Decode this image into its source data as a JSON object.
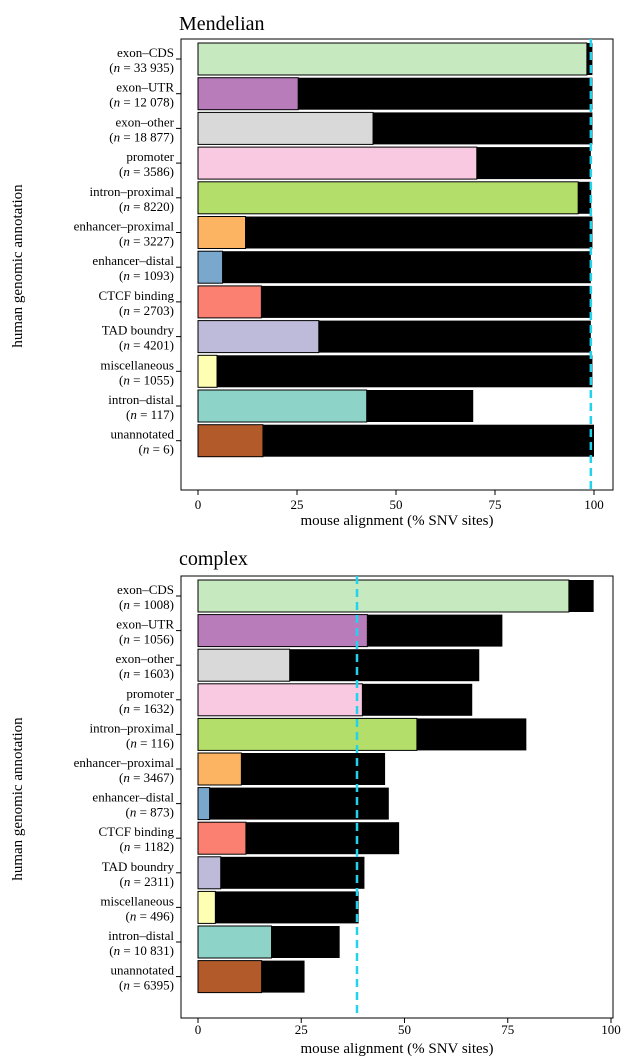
{
  "chart_data": [
    {
      "type": "bar",
      "orientation": "horizontal",
      "stacked": true,
      "title": "Mendelian",
      "xlabel": "mouse alignment (% SNV sites)",
      "ylabel": "human genomic annotation",
      "xlim": [
        0,
        100
      ],
      "xticks": [
        "0",
        "25",
        "50",
        "75",
        "100"
      ],
      "reference_line": 99.2,
      "reference_line_color": "#22d3ee",
      "categories": [
        {
          "name": "exon–CDS",
          "n": "n = 33 935",
          "color": "#c7e9c0",
          "value": 98.2,
          "total": 99.6
        },
        {
          "name": "exon–UTR",
          "n": "n = 12 078",
          "color": "#b87cbb",
          "value": 25.3,
          "total": 99.6
        },
        {
          "name": "exon–other",
          "n": "n = 18 877",
          "color": "#d9d9d9",
          "value": 44.2,
          "total": 99.6
        },
        {
          "name": "promoter",
          "n": "n = 3586",
          "color": "#f9c9e1",
          "value": 70.4,
          "total": 99.2
        },
        {
          "name": "intron–proximal",
          "n": "n = 8220",
          "color": "#b3de69",
          "value": 96.0,
          "total": 99.3
        },
        {
          "name": "enhancer–proximal",
          "n": "n = 3227",
          "color": "#fdb462",
          "value": 12.0,
          "total": 99.6
        },
        {
          "name": "enhancer–distal",
          "n": "n = 1093",
          "color": "#7aa7cc",
          "value": 6.2,
          "total": 99.2
        },
        {
          "name": "CTCF binding",
          "n": "n = 2703",
          "color": "#fb8072",
          "value": 16.0,
          "total": 99.3
        },
        {
          "name": "TAD boundry",
          "n": "n = 4201",
          "color": "#bebada",
          "value": 30.5,
          "total": 99.2
        },
        {
          "name": "miscellaneous",
          "n": "n = 1055",
          "color": "#ffffb3",
          "value": 4.8,
          "total": 99.6
        },
        {
          "name": "intron–distal",
          "n": "n = 117",
          "color": "#8dd3c7",
          "value": 42.6,
          "total": 69.5
        },
        {
          "name": "unannotated",
          "n": "n = 6",
          "color": "#b35a2a",
          "value": 16.4,
          "total": 100.0
        }
      ]
    },
    {
      "type": "bar",
      "orientation": "horizontal",
      "stacked": true,
      "title": "complex",
      "xlabel": "mouse alignment (% SNV sites)",
      "ylabel": "human genomic annotation",
      "xlim": [
        0,
        100
      ],
      "xticks": [
        "0",
        "25",
        "50",
        "75",
        "100"
      ],
      "reference_line": 38.5,
      "reference_line_color": "#22d3ee",
      "categories": [
        {
          "name": "exon–CDS",
          "n": "n = 1008",
          "color": "#c7e9c0",
          "value": 89.8,
          "total": 95.8
        },
        {
          "name": "exon–UTR",
          "n": "n = 1056",
          "color": "#b87cbb",
          "value": 41.0,
          "total": 73.7
        },
        {
          "name": "exon–other",
          "n": "n = 1603",
          "color": "#d9d9d9",
          "value": 22.2,
          "total": 68.1
        },
        {
          "name": "promoter",
          "n": "n = 1632",
          "color": "#f9c9e1",
          "value": 39.8,
          "total": 66.4
        },
        {
          "name": "intron–proximal",
          "n": "n = 116",
          "color": "#b3de69",
          "value": 53.0,
          "total": 79.5
        },
        {
          "name": "enhancer–proximal",
          "n": "n = 3467",
          "color": "#fdb462",
          "value": 10.5,
          "total": 45.3
        },
        {
          "name": "enhancer–distal",
          "n": "n = 873",
          "color": "#7aa7cc",
          "value": 2.8,
          "total": 46.2
        },
        {
          "name": "CTCF binding",
          "n": "n = 1182",
          "color": "#fb8072",
          "value": 11.6,
          "total": 48.7
        },
        {
          "name": "TAD boundry",
          "n": "n = 2311",
          "color": "#bebada",
          "value": 5.5,
          "total": 40.3
        },
        {
          "name": "miscellaneous",
          "n": "n = 496",
          "color": "#ffffb3",
          "value": 4.2,
          "total": 38.9
        },
        {
          "name": "intron–distal",
          "n": "n = 10 831",
          "color": "#8dd3c7",
          "value": 17.8,
          "total": 34.3
        },
        {
          "name": "unannotated",
          "n": "n = 6395",
          "color": "#b35a2a",
          "value": 15.4,
          "total": 25.8
        }
      ]
    }
  ]
}
